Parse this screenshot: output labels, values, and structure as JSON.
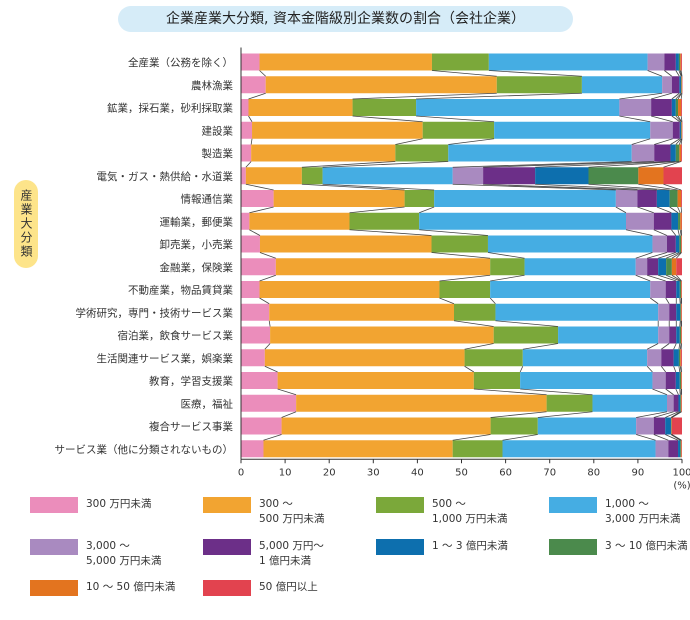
{
  "title": "企業産業大分類, 資本金階級別企業数の割合（会社企業）",
  "chart_data": {
    "type": "bar",
    "stacked": true,
    "orientation": "horizontal",
    "title": "企業産業大分類, 資本金階級別企業数の割合（会社企業）",
    "ylabel": "産業大分類",
    "xlabel": "(%)",
    "xlim": [
      0,
      100
    ],
    "xticks": [
      0,
      10,
      20,
      30,
      40,
      50,
      60,
      70,
      80,
      90,
      100
    ],
    "grid": false,
    "legend_position": "bottom",
    "categories": [
      "全産業（公務を除く）",
      "農林漁業",
      "鉱業，採石業，砂利採取業",
      "建設業",
      "製造業",
      "電気・ガス・熱供給・水道業",
      "情報通信業",
      "運輸業，郵便業",
      "卸売業，小売業",
      "金融業，保険業",
      "不動産業，物品賃貸業",
      "学術研究，専門・技術サービス業",
      "宿泊業，飲食サービス業",
      "生活関連サービス業，娯楽業",
      "教育，学習支援業",
      "医療，福祉",
      "複合サービス事業",
      "サービス業（他に分類されないもの）"
    ],
    "series": [
      {
        "name": "300 万円未満",
        "color": "#eb8dbb",
        "values": [
          4.2,
          5.6,
          1.7,
          2.5,
          2.3,
          1.1,
          7.4,
          1.9,
          4.3,
          7.9,
          4.2,
          6.4,
          6.6,
          5.4,
          8.3,
          12.5,
          9.2,
          5.1
        ]
      },
      {
        "name": "300 ～\n500 万円未満",
        "color": "#f2a431",
        "values": [
          39.1,
          52.4,
          23.6,
          38.7,
          32.7,
          12.7,
          29.7,
          22.7,
          38.9,
          48.6,
          40.8,
          41.9,
          50.7,
          45.3,
          44.5,
          56.8,
          47.4,
          42.9
        ]
      },
      {
        "name": "500 ～\n1,000 万円未満",
        "color": "#7ba83a",
        "values": [
          12.9,
          19.3,
          14.4,
          16.2,
          12.0,
          4.7,
          6.7,
          15.8,
          12.8,
          7.8,
          11.5,
          9.4,
          14.6,
          13.2,
          10.5,
          10.4,
          10.7,
          11.3
        ]
      },
      {
        "name": "1,000 ～\n3,000 万円未満",
        "color": "#45ade3",
        "values": [
          36.0,
          18.2,
          46.1,
          35.4,
          41.6,
          29.5,
          41.2,
          46.9,
          37.3,
          25.2,
          36.3,
          36.9,
          22.7,
          28.2,
          30.0,
          16.9,
          22.3,
          34.7
        ]
      },
      {
        "name": "3,000 ～\n5,000 万円未満",
        "color": "#a98ac0",
        "values": [
          3.8,
          2.2,
          7.2,
          5.1,
          5.1,
          6.9,
          4.9,
          6.3,
          3.3,
          2.6,
          3.5,
          2.5,
          2.5,
          3.2,
          3.0,
          1.5,
          4.0,
          2.9
        ]
      },
      {
        "name": "5,000 万円～\n1 億円未満",
        "color": "#6c2f88",
        "values": [
          2.6,
          1.7,
          4.7,
          1.6,
          3.7,
          11.8,
          4.4,
          4.0,
          2.0,
          2.5,
          2.4,
          1.6,
          1.6,
          2.8,
          2.3,
          1.1,
          2.6,
          2.2
        ]
      },
      {
        "name": "1 ～ 3 億円未満",
        "color": "#0d6fae",
        "values": [
          0.7,
          0.4,
          0.9,
          0.3,
          1.2,
          12.1,
          2.9,
          1.5,
          0.8,
          1.8,
          0.8,
          0.9,
          0.8,
          1.2,
          0.9,
          0.4,
          1.3,
          0.5
        ]
      },
      {
        "name": "3 ～ 10 億円未満",
        "color": "#4b8a4c",
        "values": [
          0.3,
          0.1,
          0.5,
          0.1,
          0.8,
          11.3,
          1.8,
          0.5,
          0.4,
          1.3,
          0.3,
          0.2,
          0.3,
          0.3,
          0.3,
          0.2,
          0.1,
          0.2
        ]
      },
      {
        "name": "10 ～ 50 億円未満",
        "color": "#e3741f",
        "values": [
          0.2,
          0.1,
          0.7,
          0.1,
          0.4,
          5.7,
          0.8,
          0.3,
          0.1,
          1.0,
          0.1,
          0.1,
          0.1,
          0.2,
          0.1,
          0.1,
          0.1,
          0.1
        ]
      },
      {
        "name": "50 億円以上",
        "color": "#e2434f",
        "values": [
          0.2,
          0.1,
          0.2,
          0.1,
          0.2,
          4.2,
          0.2,
          0.1,
          0.1,
          1.3,
          0.1,
          0.1,
          0.1,
          0.2,
          0.1,
          0.1,
          2.3,
          0.1
        ]
      }
    ]
  }
}
